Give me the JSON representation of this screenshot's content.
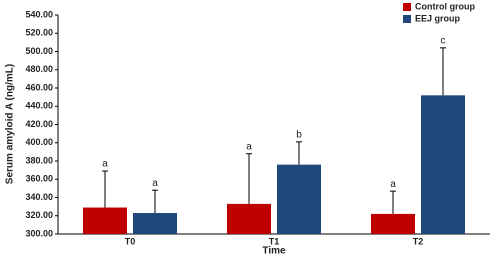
{
  "chart_data": {
    "type": "bar",
    "x_label": "Time",
    "y_label": "Serum amyloid A (ng/mL)",
    "categories": [
      "T0",
      "T1",
      "T2"
    ],
    "series": [
      {
        "name": "Control group",
        "color": "#c00000",
        "values": [
          329,
          333,
          322
        ],
        "errors": [
          40,
          55,
          25
        ],
        "significance_labels": [
          "a",
          "a",
          "a"
        ]
      },
      {
        "name": "EEJ group",
        "color": "#1f497d",
        "values": [
          323,
          376,
          452
        ],
        "errors": [
          25,
          25,
          52
        ],
        "significance_labels": [
          "a",
          "b",
          "c"
        ]
      }
    ],
    "ylim": [
      300,
      540
    ],
    "yticks": [
      {
        "value": 300,
        "label": "300.00"
      },
      {
        "value": 320,
        "label": "320.00"
      },
      {
        "value": 340,
        "label": "340.00"
      },
      {
        "value": 360,
        "label": "360.00"
      },
      {
        "value": 380,
        "label": "380.00"
      },
      {
        "value": 400,
        "label": "400.00"
      },
      {
        "value": 420,
        "label": "420.00"
      },
      {
        "value": 440,
        "label": "440.00"
      },
      {
        "value": 460,
        "label": "460.00"
      },
      {
        "value": 480,
        "label": "480.00"
      },
      {
        "value": 500,
        "label": "500.00"
      },
      {
        "value": 520,
        "label": "520.00"
      },
      {
        "value": 540,
        "label": "540.00"
      }
    ],
    "grid": false,
    "legend_position": "top-right"
  }
}
